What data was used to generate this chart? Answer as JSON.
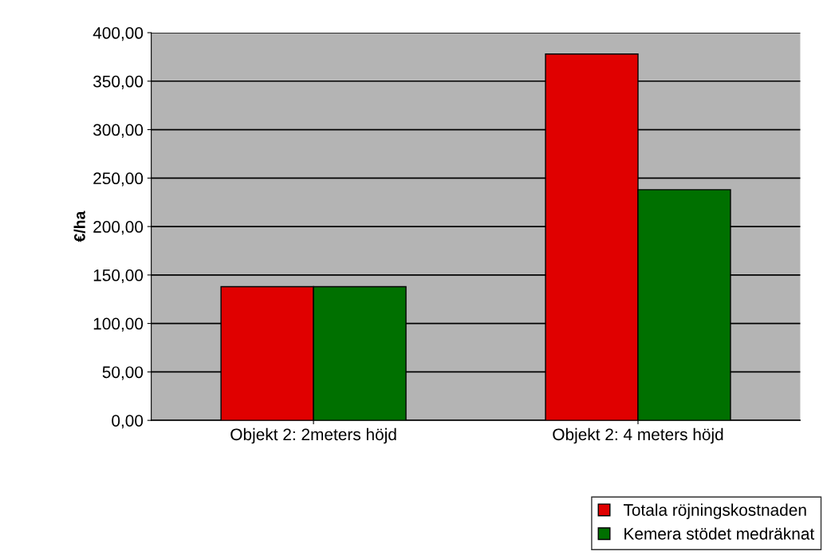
{
  "chart_data": {
    "type": "bar",
    "ylabel": "€/ha",
    "categories": [
      "Objekt 2: 2meters höjd",
      "Objekt 2: 4 meters höjd"
    ],
    "series": [
      {
        "name": "Totala röjningskostnaden",
        "color": "#e00000",
        "values": [
          138,
          378
        ]
      },
      {
        "name": "Kemera stödet medräknat",
        "color": "#007000",
        "values": [
          138,
          238
        ]
      }
    ],
    "ylim": [
      0,
      400
    ],
    "yticks": [
      {
        "value": 0,
        "label": "0,00"
      },
      {
        "value": 50,
        "label": "50,00"
      },
      {
        "value": 100,
        "label": "100,00"
      },
      {
        "value": 150,
        "label": "150,00"
      },
      {
        "value": 200,
        "label": "200,00"
      },
      {
        "value": 250,
        "label": "250,00"
      },
      {
        "value": 300,
        "label": "300,00"
      },
      {
        "value": 350,
        "label": "350,00"
      },
      {
        "value": 400,
        "label": "400,00"
      }
    ],
    "grid": "y",
    "legend": "bottom right"
  }
}
